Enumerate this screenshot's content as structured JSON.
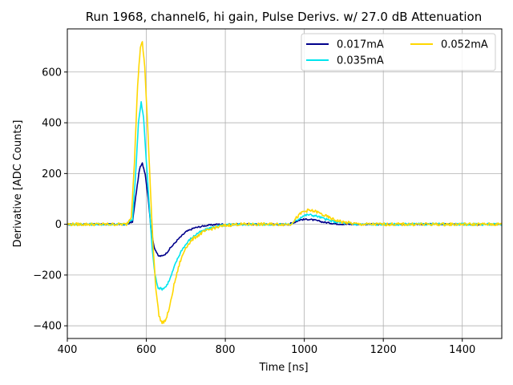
{
  "chart_data": {
    "type": "line",
    "title": "Run 1968, channel6, hi gain, Pulse Derivs. w/ 27.0 dB Attenuation",
    "xlabel": "Time [ns]",
    "ylabel": "Derivative [ADC Counts]",
    "xlim": [
      400,
      1500
    ],
    "ylim": [
      -450,
      770
    ],
    "xticks": [
      400,
      600,
      800,
      1000,
      1200,
      1400
    ],
    "yticks": [
      -400,
      -200,
      0,
      200,
      400,
      600
    ],
    "xtick_labels": [
      "400",
      "600",
      "800",
      "1000",
      "1200",
      "1400"
    ],
    "ytick_labels": [
      "−400",
      "−200",
      "0",
      "200",
      "400",
      "600"
    ],
    "grid": true,
    "legend": {
      "placement": "upper-right",
      "columns": 2
    },
    "series": [
      {
        "name": "0.017mA",
        "color": "#00008b",
        "points": [
          [
            400,
            0
          ],
          [
            550,
            0
          ],
          [
            565,
            10
          ],
          [
            575,
            130
          ],
          [
            583,
            220
          ],
          [
            590,
            240
          ],
          [
            597,
            200
          ],
          [
            605,
            100
          ],
          [
            612,
            -20
          ],
          [
            620,
            -90
          ],
          [
            630,
            -125
          ],
          [
            640,
            -125
          ],
          [
            650,
            -115
          ],
          [
            660,
            -95
          ],
          [
            680,
            -60
          ],
          [
            700,
            -30
          ],
          [
            720,
            -15
          ],
          [
            750,
            -5
          ],
          [
            780,
            0
          ],
          [
            960,
            0
          ],
          [
            975,
            8
          ],
          [
            990,
            18
          ],
          [
            1010,
            20
          ],
          [
            1030,
            15
          ],
          [
            1050,
            8
          ],
          [
            1080,
            2
          ],
          [
            1110,
            0
          ],
          [
            1500,
            0
          ]
        ]
      },
      {
        "name": "0.035mA",
        "color": "#00e5ee",
        "points": [
          [
            400,
            0
          ],
          [
            550,
            0
          ],
          [
            565,
            20
          ],
          [
            573,
            200
          ],
          [
            580,
            400
          ],
          [
            587,
            480
          ],
          [
            593,
            420
          ],
          [
            600,
            250
          ],
          [
            608,
            60
          ],
          [
            615,
            -100
          ],
          [
            622,
            -200
          ],
          [
            630,
            -250
          ],
          [
            640,
            -255
          ],
          [
            650,
            -245
          ],
          [
            660,
            -215
          ],
          [
            675,
            -150
          ],
          [
            690,
            -100
          ],
          [
            710,
            -60
          ],
          [
            730,
            -35
          ],
          [
            760,
            -15
          ],
          [
            790,
            -5
          ],
          [
            820,
            0
          ],
          [
            965,
            0
          ],
          [
            980,
            15
          ],
          [
            995,
            32
          ],
          [
            1010,
            38
          ],
          [
            1030,
            33
          ],
          [
            1050,
            22
          ],
          [
            1070,
            12
          ],
          [
            1100,
            5
          ],
          [
            1130,
            0
          ],
          [
            1500,
            0
          ]
        ]
      },
      {
        "name": "0.052mA",
        "color": "#ffd700",
        "points": [
          [
            400,
            0
          ],
          [
            550,
            0
          ],
          [
            562,
            30
          ],
          [
            570,
            250
          ],
          [
            578,
            550
          ],
          [
            585,
            700
          ],
          [
            590,
            715
          ],
          [
            596,
            620
          ],
          [
            603,
            400
          ],
          [
            610,
            150
          ],
          [
            617,
            -80
          ],
          [
            624,
            -250
          ],
          [
            632,
            -360
          ],
          [
            640,
            -390
          ],
          [
            650,
            -375
          ],
          [
            660,
            -320
          ],
          [
            670,
            -240
          ],
          [
            685,
            -150
          ],
          [
            700,
            -90
          ],
          [
            720,
            -55
          ],
          [
            745,
            -30
          ],
          [
            770,
            -15
          ],
          [
            800,
            -5
          ],
          [
            830,
            0
          ],
          [
            965,
            0
          ],
          [
            980,
            25
          ],
          [
            995,
            48
          ],
          [
            1010,
            55
          ],
          [
            1030,
            50
          ],
          [
            1050,
            35
          ],
          [
            1075,
            18
          ],
          [
            1100,
            8
          ],
          [
            1140,
            0
          ],
          [
            1500,
            0
          ]
        ]
      }
    ]
  }
}
